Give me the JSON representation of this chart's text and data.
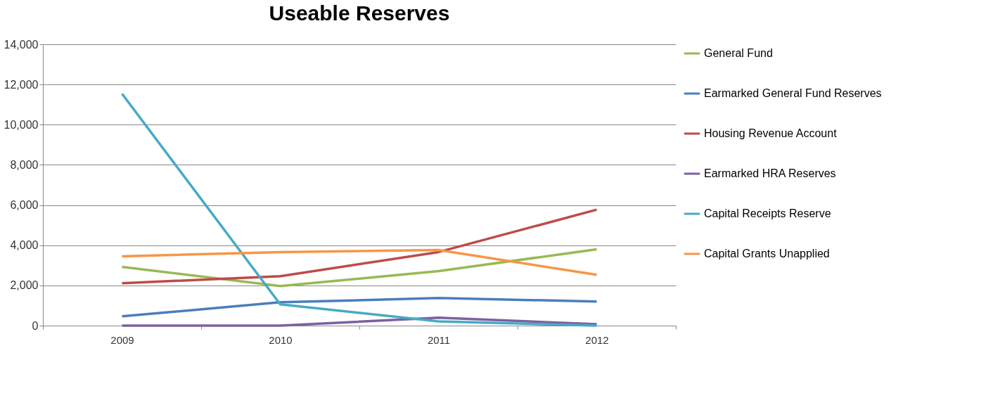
{
  "chart_data": {
    "type": "line",
    "title": "Useable Reserves",
    "categories": [
      "2009",
      "2010",
      "2011",
      "2012"
    ],
    "series": [
      {
        "name": "General Fund",
        "color": "#98b954",
        "values": [
          2920,
          1970,
          2710,
          3800
        ]
      },
      {
        "name": "Earmarked General Fund Reserves",
        "color": "#4a7ebb",
        "values": [
          460,
          1160,
          1370,
          1200
        ]
      },
      {
        "name": "Housing Revenue Account",
        "color": "#be4b48",
        "values": [
          2110,
          2460,
          3660,
          5770
        ]
      },
      {
        "name": "Earmarked HRA Reserves",
        "color": "#7d60a0",
        "values": [
          0,
          0,
          390,
          70
        ]
      },
      {
        "name": "Capital Receipts Reserve",
        "color": "#46aac5",
        "values": [
          11540,
          1060,
          210,
          0
        ]
      },
      {
        "name": "Capital Grants Unapplied",
        "color": "#f79646",
        "values": [
          3450,
          3660,
          3760,
          2530
        ]
      }
    ],
    "ylim": [
      0,
      14000
    ],
    "yticks": [
      {
        "value": 0,
        "label": "0"
      },
      {
        "value": 2000,
        "label": "2,000"
      },
      {
        "value": 4000,
        "label": "4,000"
      },
      {
        "value": 6000,
        "label": "6,000"
      },
      {
        "value": 8000,
        "label": "8,000"
      },
      {
        "value": 10000,
        "label": "10,000"
      },
      {
        "value": 12000,
        "label": "12,000"
      },
      {
        "value": 14000,
        "label": "14,000"
      }
    ],
    "grid": "y",
    "legend": "right",
    "marker": "none",
    "line_style": "solid"
  }
}
